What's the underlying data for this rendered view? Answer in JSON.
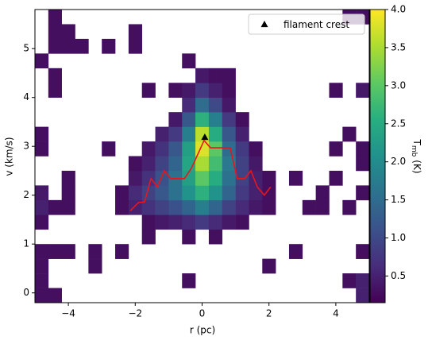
{
  "chart_data": {
    "type": "heatmap",
    "xlabel": "r (pc)",
    "ylabel": "v (km/s)",
    "xlim": [
      -5,
      5
    ],
    "ylim": [
      -0.2,
      5.8
    ],
    "xticks": [
      {
        "value": -4,
        "label": "−4"
      },
      {
        "value": -2,
        "label": "−2"
      },
      0,
      2,
      4
    ],
    "yticks": [
      0,
      1,
      2,
      3,
      4,
      5
    ],
    "xbins": [
      -5,
      -4.6,
      -4.2,
      -3.8,
      -3.4,
      -3,
      -2.6,
      -2.2,
      -1.8,
      -1.4,
      -1,
      -0.6,
      -0.2,
      0.2,
      0.6,
      1,
      1.4,
      1.8,
      2.2,
      2.6,
      3,
      3.4,
      3.8,
      4.2,
      4.6,
      5
    ],
    "ybins": [
      -0.2,
      0.1,
      0.4,
      0.7,
      1,
      1.3,
      1.6,
      1.9,
      2.2,
      2.5,
      2.8,
      3.1,
      3.4,
      3.7,
      4,
      4.3,
      4.6,
      4.9,
      5.2,
      5.5,
      5.8
    ],
    "z": [
      [
        0.3,
        0.3,
        null,
        null,
        null,
        null,
        null,
        null,
        null,
        null,
        null,
        null,
        null,
        null,
        null,
        null,
        null,
        null,
        null,
        null,
        null,
        null,
        null,
        null,
        0.5
      ],
      [
        0.3,
        null,
        null,
        null,
        null,
        null,
        null,
        null,
        null,
        null,
        null,
        0.3,
        null,
        null,
        null,
        null,
        null,
        null,
        null,
        null,
        null,
        null,
        null,
        0.3,
        0.5
      ],
      [
        0.3,
        null,
        null,
        null,
        0.3,
        null,
        null,
        null,
        null,
        null,
        null,
        null,
        null,
        null,
        null,
        null,
        null,
        0.3,
        null,
        null,
        null,
        null,
        null,
        null,
        null
      ],
      [
        0.3,
        0.3,
        0.3,
        null,
        0.3,
        null,
        0.3,
        null,
        null,
        null,
        null,
        null,
        null,
        null,
        null,
        null,
        null,
        null,
        null,
        0.3,
        null,
        null,
        null,
        null,
        0.3
      ],
      [
        null,
        null,
        null,
        null,
        null,
        null,
        null,
        null,
        0.3,
        null,
        null,
        0.3,
        null,
        0.3,
        null,
        null,
        null,
        null,
        null,
        null,
        null,
        null,
        null,
        null,
        null
      ],
      [
        0.3,
        null,
        null,
        null,
        null,
        null,
        null,
        null,
        0.3,
        0.4,
        0.5,
        0.6,
        0.8,
        0.6,
        0.4,
        0.3,
        null,
        null,
        null,
        null,
        null,
        null,
        null,
        null,
        null
      ],
      [
        0.5,
        0.3,
        0.3,
        null,
        null,
        null,
        0.3,
        0.5,
        0.7,
        0.9,
        1.1,
        1.4,
        1.8,
        1.4,
        0.9,
        0.6,
        0.4,
        0.3,
        null,
        null,
        0.3,
        0.3,
        null,
        0.3,
        null
      ],
      [
        0.4,
        null,
        0.3,
        null,
        null,
        null,
        0.3,
        0.6,
        0.9,
        1.2,
        1.6,
        2.1,
        2.6,
        2.1,
        1.4,
        0.8,
        0.5,
        0.3,
        null,
        null,
        null,
        0.3,
        null,
        null,
        0.3
      ],
      [
        null,
        null,
        0.3,
        null,
        null,
        null,
        null,
        0.4,
        0.7,
        1.1,
        1.6,
        2.3,
        3.0,
        2.5,
        1.6,
        0.9,
        0.5,
        0.3,
        null,
        0.3,
        null,
        null,
        0.3,
        null,
        null
      ],
      [
        null,
        null,
        null,
        null,
        null,
        null,
        null,
        0.3,
        0.5,
        0.9,
        1.4,
        2.4,
        3.5,
        2.8,
        1.7,
        0.9,
        0.4,
        null,
        null,
        null,
        null,
        null,
        null,
        null,
        0.3
      ],
      [
        0.3,
        null,
        null,
        null,
        null,
        0.3,
        null,
        null,
        0.4,
        0.7,
        1.2,
        2.3,
        3.8,
        3.0,
        1.5,
        0.8,
        0.3,
        null,
        null,
        null,
        null,
        null,
        0.3,
        null,
        0.3
      ],
      [
        0.3,
        null,
        null,
        null,
        null,
        null,
        null,
        null,
        null,
        0.5,
        0.8,
        1.8,
        3.6,
        2.5,
        1.2,
        0.5,
        null,
        null,
        null,
        null,
        null,
        null,
        null,
        0.3,
        null
      ],
      [
        null,
        null,
        null,
        null,
        null,
        null,
        null,
        null,
        null,
        null,
        0.4,
        1.2,
        2.6,
        1.8,
        0.8,
        0.3,
        null,
        null,
        null,
        null,
        null,
        null,
        null,
        null,
        null
      ],
      [
        null,
        null,
        null,
        null,
        null,
        null,
        null,
        null,
        null,
        null,
        null,
        0.6,
        1.5,
        1.0,
        0.4,
        null,
        null,
        null,
        null,
        null,
        null,
        null,
        null,
        null,
        null
      ],
      [
        null,
        0.3,
        null,
        null,
        null,
        null,
        null,
        null,
        0.3,
        null,
        0.3,
        0.4,
        0.8,
        0.5,
        0.3,
        null,
        null,
        null,
        null,
        null,
        null,
        null,
        0.3,
        null,
        0.4
      ],
      [
        null,
        0.3,
        null,
        null,
        null,
        null,
        null,
        null,
        null,
        null,
        null,
        null,
        0.4,
        0.3,
        0.3,
        null,
        null,
        null,
        null,
        null,
        null,
        null,
        null,
        null,
        null
      ],
      [
        0.3,
        null,
        null,
        null,
        null,
        null,
        null,
        null,
        null,
        null,
        null,
        0.3,
        null,
        null,
        null,
        null,
        null,
        null,
        null,
        null,
        null,
        null,
        null,
        null,
        null
      ],
      [
        null,
        0.3,
        0.3,
        0.3,
        null,
        0.3,
        null,
        0.3,
        null,
        null,
        null,
        null,
        null,
        null,
        null,
        null,
        null,
        null,
        null,
        null,
        null,
        null,
        null,
        null,
        null
      ],
      [
        null,
        0.3,
        0.3,
        null,
        null,
        null,
        null,
        0.3,
        null,
        null,
        null,
        null,
        null,
        null,
        null,
        null,
        null,
        null,
        null,
        null,
        null,
        null,
        null,
        null,
        null
      ],
      [
        null,
        0.3,
        null,
        null,
        null,
        null,
        null,
        null,
        null,
        null,
        null,
        null,
        null,
        null,
        null,
        null,
        null,
        null,
        null,
        null,
        null,
        null,
        null,
        0.3,
        0.3
      ]
    ],
    "colormap": "viridis",
    "clim": [
      0.15,
      4.0
    ],
    "cticks": [
      0.5,
      {
        "value": 1,
        "label": "1.0"
      },
      1.5,
      {
        "value": 2,
        "label": "2.0"
      },
      2.5,
      {
        "value": 3,
        "label": "3.0"
      },
      3.5,
      {
        "value": 4,
        "label": "4.0"
      }
    ],
    "colorbar_label": {
      "symbol": "T",
      "subscript": "mb",
      "unit": "(K)"
    },
    "line": {
      "color": "#e8161b",
      "x": [
        -2.15,
        -1.9,
        -1.72,
        -1.53,
        -1.34,
        -1.13,
        -0.94,
        -0.53,
        -0.32,
        0.06,
        0.25,
        0.84,
        1.05,
        1.27,
        1.46,
        1.65,
        1.86,
        2.05
      ],
      "y": [
        1.68,
        1.85,
        1.86,
        2.34,
        2.17,
        2.5,
        2.34,
        2.34,
        2.55,
        3.12,
        2.97,
        2.97,
        2.34,
        2.34,
        2.5,
        2.17,
        2.0,
        2.17
      ]
    },
    "marker": {
      "name": "filament crest",
      "x": 0.08,
      "y": 3.19,
      "color": "#000000"
    },
    "legend": "upper right"
  }
}
